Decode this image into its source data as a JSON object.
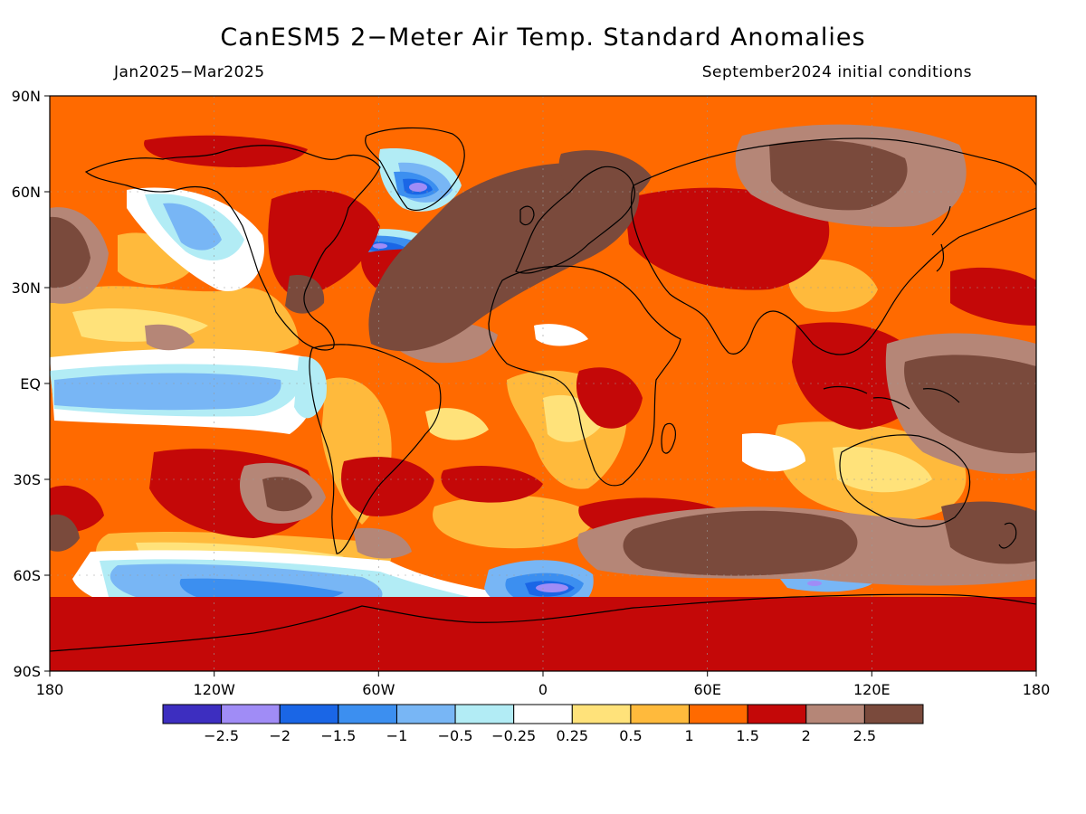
{
  "header": {
    "title": "CanESM5 2−Meter Air Temp. Standard Anomalies",
    "period": "Jan2025−Mar2025",
    "initial_conditions": "September2024 initial conditions"
  },
  "axes": {
    "lon_ticks": [
      "180",
      "120W",
      "60W",
      "0",
      "60E",
      "120E",
      "180"
    ],
    "lat_ticks": [
      "90N",
      "60N",
      "30N",
      "EQ",
      "30S",
      "60S",
      "90S"
    ]
  },
  "colorbar": {
    "colors": [
      "#3d2ec0",
      "#a08cf6",
      "#1a66e6",
      "#3c8ff0",
      "#78b6f5",
      "#b2ecf5",
      "#ffffff",
      "#ffe27a",
      "#ffba3c",
      "#ff6a00",
      "#c40808",
      "#b58677",
      "#7a4a3c"
    ],
    "labels": [
      "−2.5",
      "−2",
      "−1.5",
      "−1",
      "−0.5",
      "−0.25",
      "0.25",
      "0.5",
      "1",
      "1.5",
      "2",
      "2.5"
    ]
  }
}
